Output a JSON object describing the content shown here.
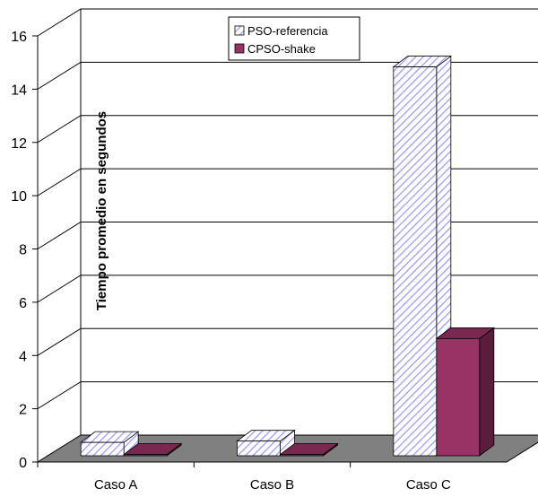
{
  "chart_data": {
    "type": "bar3d",
    "y_label": "Tiempo promedio en segundos",
    "categories": [
      "Caso A",
      "Caso B",
      "Caso C"
    ],
    "series": [
      {
        "name": "PSO-referencia",
        "color": "#9999ff",
        "values": [
          0.5,
          0.55,
          14.6
        ]
      },
      {
        "name": "CPSO-shake",
        "color": "#993366",
        "values": [
          0.05,
          0.05,
          4.4
        ]
      }
    ],
    "ylim": [
      0,
      16
    ],
    "yticks": [
      0,
      2,
      4,
      6,
      8,
      10,
      12,
      14,
      16
    ],
    "grid": true
  }
}
